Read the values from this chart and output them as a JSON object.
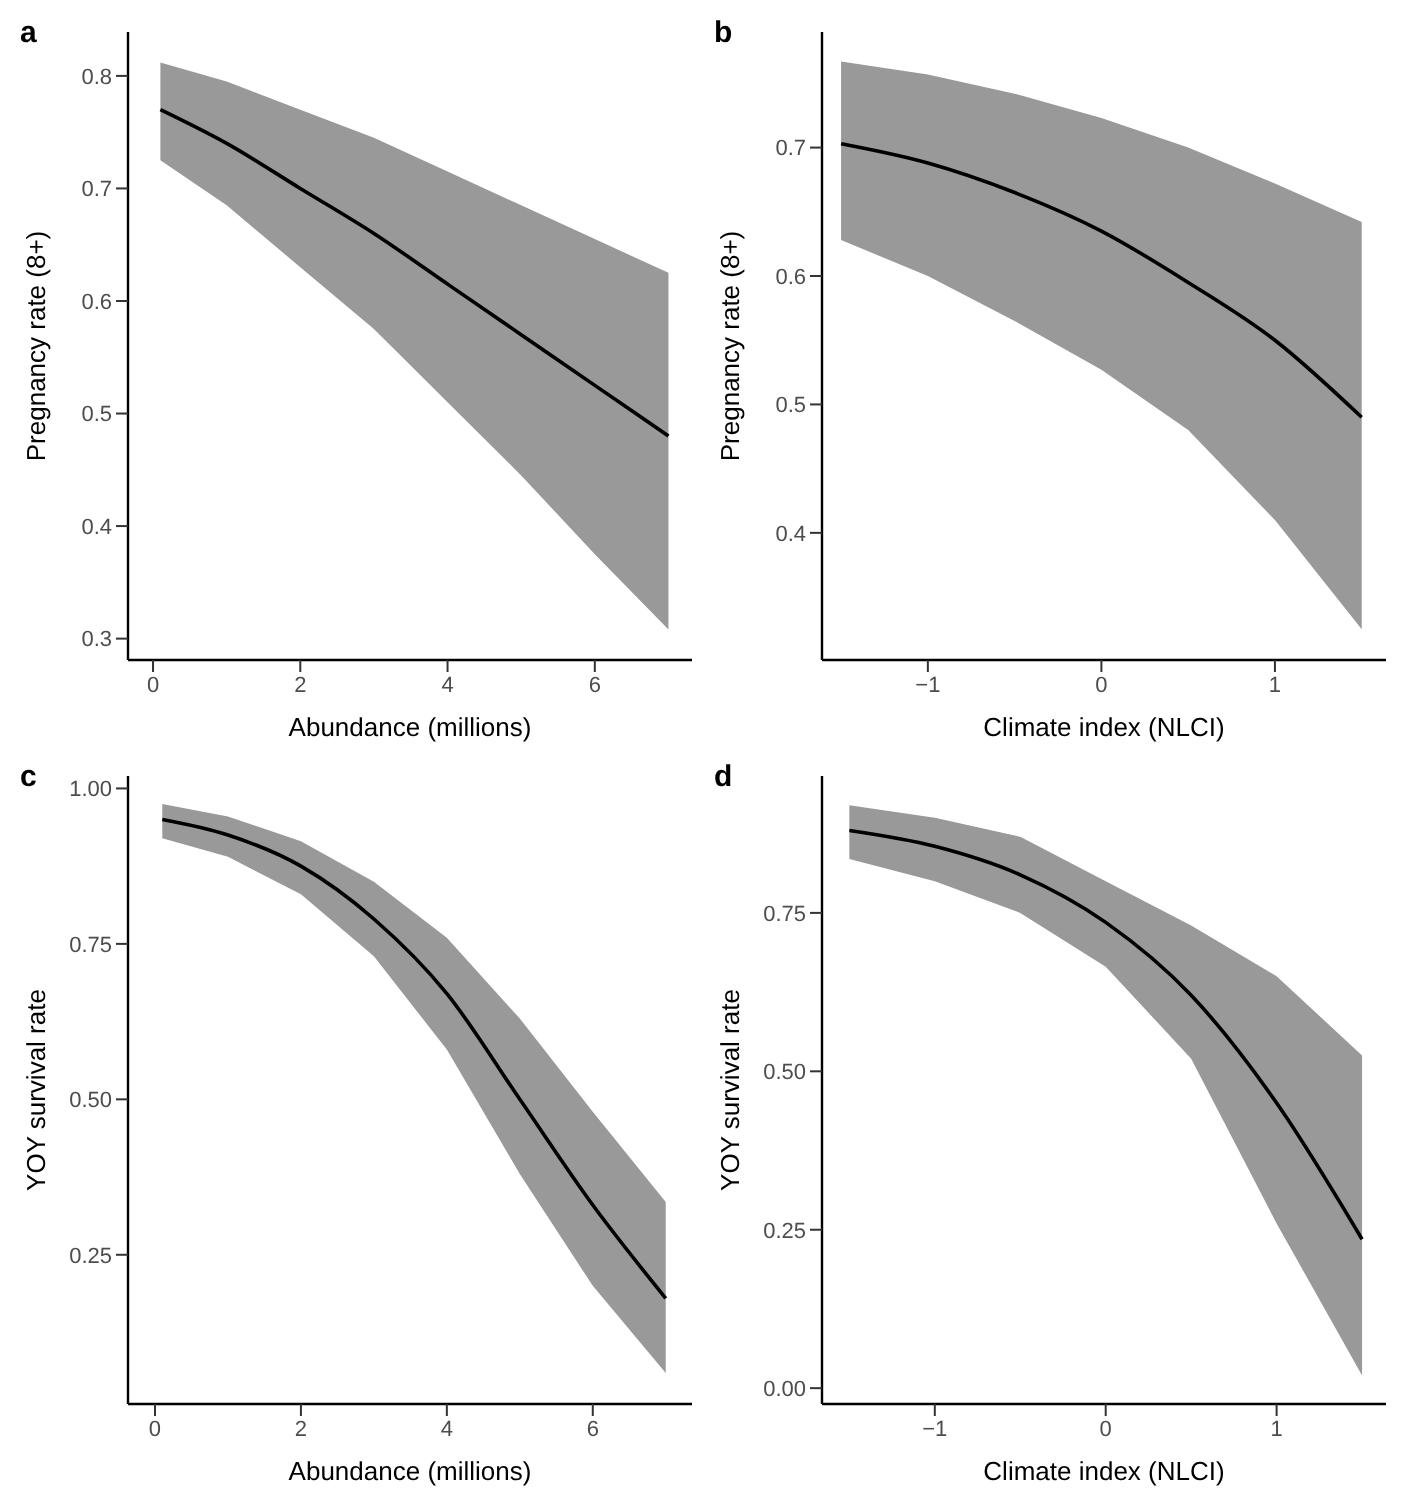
{
  "chart_data": [
    {
      "type": "line",
      "title": "a",
      "xlabel": "Abundance (millions)",
      "ylabel": "Pregnancy rate (8+)",
      "x": [
        0.1,
        1,
        2,
        3,
        4,
        5,
        6,
        7
      ],
      "xlim": [
        -0.34,
        7.32
      ],
      "xticks": [
        0,
        2,
        4,
        6
      ],
      "ylim": [
        0.281,
        0.839
      ],
      "yticks": [
        0.3,
        0.4,
        0.5,
        0.6,
        0.7,
        0.8
      ],
      "grid": false,
      "series": [
        {
          "color": "#000000",
          "values": [
            0.77,
            0.74,
            0.7,
            0.66,
            0.615,
            0.57,
            0.525,
            0.48
          ],
          "lower": [
            0.725,
            0.685,
            0.63,
            0.575,
            0.51,
            0.445,
            0.375,
            0.308
          ],
          "upper": [
            0.812,
            0.795,
            0.77,
            0.745,
            0.715,
            0.685,
            0.655,
            0.625
          ]
        }
      ]
    },
    {
      "type": "line",
      "title": "b",
      "xlabel": "Climate index (NLCI)",
      "ylabel": "Pregnancy rate (8+)",
      "x": [
        -1.5,
        -1,
        -0.5,
        0,
        0.5,
        1,
        1.5
      ],
      "xlim": [
        -1.61,
        1.64
      ],
      "xticks": [
        {
          "value": -1,
          "label": "−1"
        },
        0,
        1
      ],
      "ylim": [
        0.301,
        0.79
      ],
      "yticks": [
        0.4,
        0.5,
        0.6,
        0.7
      ],
      "grid": false,
      "series": [
        {
          "color": "#000000",
          "values": [
            0.703,
            0.688,
            0.665,
            0.635,
            0.595,
            0.55,
            0.49
          ],
          "lower": [
            0.628,
            0.6,
            0.565,
            0.527,
            0.48,
            0.41,
            0.325
          ],
          "upper": [
            0.767,
            0.757,
            0.742,
            0.723,
            0.7,
            0.672,
            0.642
          ]
        }
      ]
    },
    {
      "type": "line",
      "title": "c",
      "xlabel": "Abundance (millions)",
      "ylabel": "YOY survival rate",
      "x": [
        0.1,
        1,
        2,
        3,
        4,
        5,
        6,
        7
      ],
      "xlim": [
        -0.37,
        7.36
      ],
      "xticks": [
        0,
        2,
        4,
        6
      ],
      "ylim": [
        0.01,
        1.02
      ],
      "yticks": [
        {
          "value": 0.25,
          "label": "0.25"
        },
        {
          "value": 0.5,
          "label": "0.50"
        },
        {
          "value": 0.75,
          "label": "0.75"
        },
        {
          "value": 1,
          "label": "1.00"
        }
      ],
      "grid": false,
      "series": [
        {
          "color": "#000000",
          "values": [
            0.95,
            0.925,
            0.875,
            0.79,
            0.67,
            0.5,
            0.33,
            0.18
          ],
          "lower": [
            0.92,
            0.89,
            0.83,
            0.73,
            0.58,
            0.38,
            0.2,
            0.06
          ],
          "upper": [
            0.975,
            0.955,
            0.915,
            0.85,
            0.76,
            0.63,
            0.48,
            0.335
          ]
        }
      ]
    },
    {
      "type": "line",
      "title": "d",
      "xlabel": "Climate index (NLCI)",
      "ylabel": "YOY survival rate",
      "x": [
        -1.5,
        -1,
        -0.5,
        0,
        0.5,
        1,
        1.5
      ],
      "xlim": [
        -1.66,
        1.64
      ],
      "xticks": [
        {
          "value": -1,
          "label": "−1"
        },
        0,
        1
      ],
      "ylim": [
        -0.025,
        0.966
      ],
      "yticks": [
        {
          "value": 0,
          "label": "0.00"
        },
        {
          "value": 0.25,
          "label": "0.25"
        },
        {
          "value": 0.5,
          "label": "0.50"
        },
        {
          "value": 0.75,
          "label": "0.75"
        }
      ],
      "grid": false,
      "series": [
        {
          "color": "#000000",
          "values": [
            0.88,
            0.855,
            0.81,
            0.735,
            0.62,
            0.45,
            0.235
          ],
          "lower": [
            0.835,
            0.8,
            0.75,
            0.665,
            0.52,
            0.26,
            0.02
          ],
          "upper": [
            0.92,
            0.9,
            0.87,
            0.8,
            0.73,
            0.65,
            0.525
          ]
        }
      ]
    }
  ]
}
